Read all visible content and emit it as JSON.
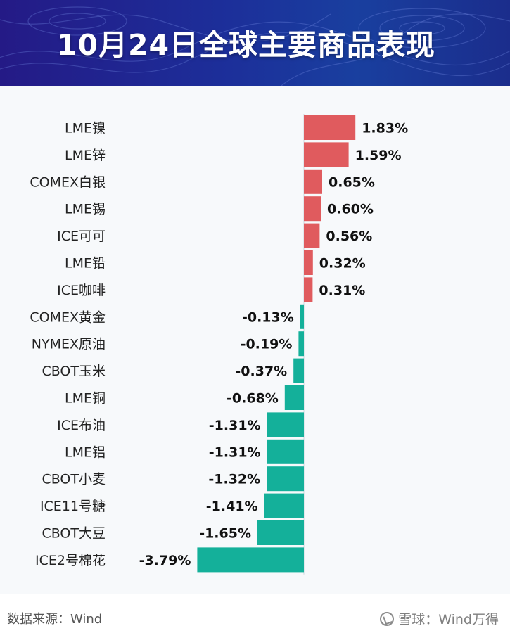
{
  "header": {
    "title": "10月24日全球主要商品表现"
  },
  "footer": {
    "source": "数据来源：Wind",
    "watermark": "雪球：Wind万得"
  },
  "colors": {
    "positive": "#e05b5e",
    "negative": "#14b09a",
    "header_bg": "#1f2e96"
  },
  "chart_data": {
    "type": "bar",
    "orientation": "horizontal",
    "unit": "%",
    "categories": [
      "LME镍",
      "LME锌",
      "COMEX白银",
      "LME锡",
      "ICE可可",
      "LME铅",
      "ICE咖啡",
      "COMEX黄金",
      "NYMEX原油",
      "CBOT玉米",
      "LME铜",
      "ICE布油",
      "LME铝",
      "CBOT小麦",
      "ICE11号糖",
      "CBOT大豆",
      "ICE2号棉花"
    ],
    "values": [
      1.83,
      1.59,
      0.65,
      0.6,
      0.56,
      0.32,
      0.31,
      -0.13,
      -0.19,
      -0.37,
      -0.68,
      -1.31,
      -1.31,
      -1.32,
      -1.41,
      -1.65,
      -3.79
    ],
    "labels": [
      "1.83%",
      "1.59%",
      "0.65%",
      "0.60%",
      "0.56%",
      "0.32%",
      "0.31%",
      "-0.13%",
      "-0.19%",
      "-0.37%",
      "-0.68%",
      "-1.31%",
      "-1.31%",
      "-1.32%",
      "-1.41%",
      "-1.65%",
      "-3.79%"
    ],
    "grid": false,
    "legend": "none"
  }
}
